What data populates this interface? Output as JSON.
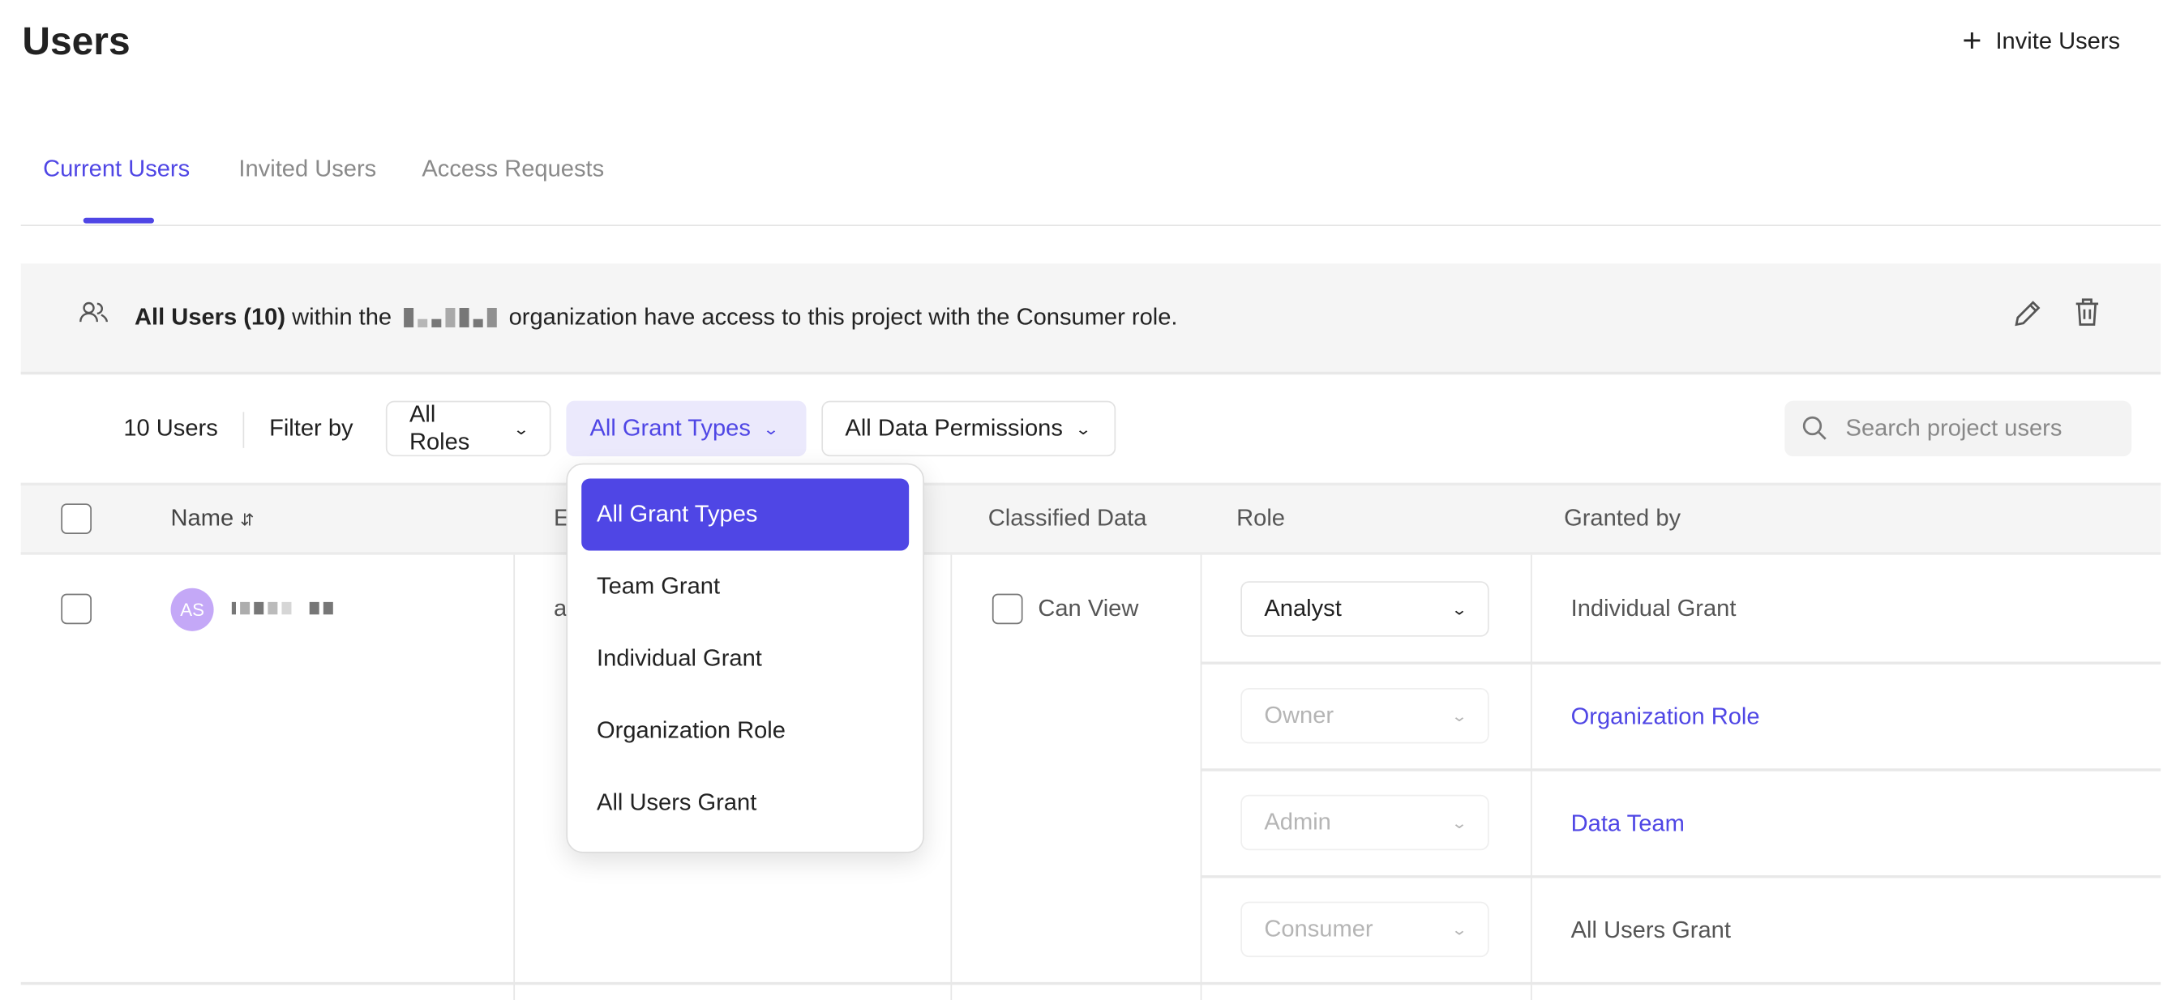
{
  "page": {
    "title": "Users",
    "invite_label": "Invite Users"
  },
  "tabs": [
    {
      "label": "Current Users",
      "active": true
    },
    {
      "label": "Invited Users"
    },
    {
      "label": "Access Requests"
    }
  ],
  "banner": {
    "bold": "All Users (10)",
    "pre": " within the ",
    "post": " organization have access to this project with the Consumer role."
  },
  "filters": {
    "count": "10 Users",
    "filter_by": "Filter by",
    "roles": "All Roles",
    "grant_types": "All Grant Types",
    "data_permissions": "All Data Permissions",
    "search_placeholder": "Search project users"
  },
  "table": {
    "headers": {
      "name": "Name",
      "email": "E",
      "classified": "Classified Data",
      "role": "Role",
      "granted_by": "Granted by"
    },
    "rows": [
      {
        "initials": "AS",
        "email": "a",
        "classified": "Can View",
        "grants": [
          {
            "role": "Analyst",
            "granted_by": "Individual Grant",
            "enabled": true,
            "link": false
          },
          {
            "role": "Owner",
            "granted_by": "Organization Role",
            "enabled": false,
            "link": true
          },
          {
            "role": "Admin",
            "granted_by": "Data Team",
            "enabled": false,
            "link": true
          },
          {
            "role": "Consumer",
            "granted_by": "All Users Grant",
            "enabled": false,
            "link": false
          }
        ]
      }
    ]
  },
  "grant_menu": {
    "options": [
      "All Grant Types",
      "Team Grant",
      "Individual Grant",
      "Organization Role",
      "All Users Grant"
    ],
    "selected": "All Grant Types"
  },
  "colors": {
    "accent": "#4f46e5",
    "accent_light": "#ebe9fc",
    "avatar": "#c4a8f7"
  }
}
